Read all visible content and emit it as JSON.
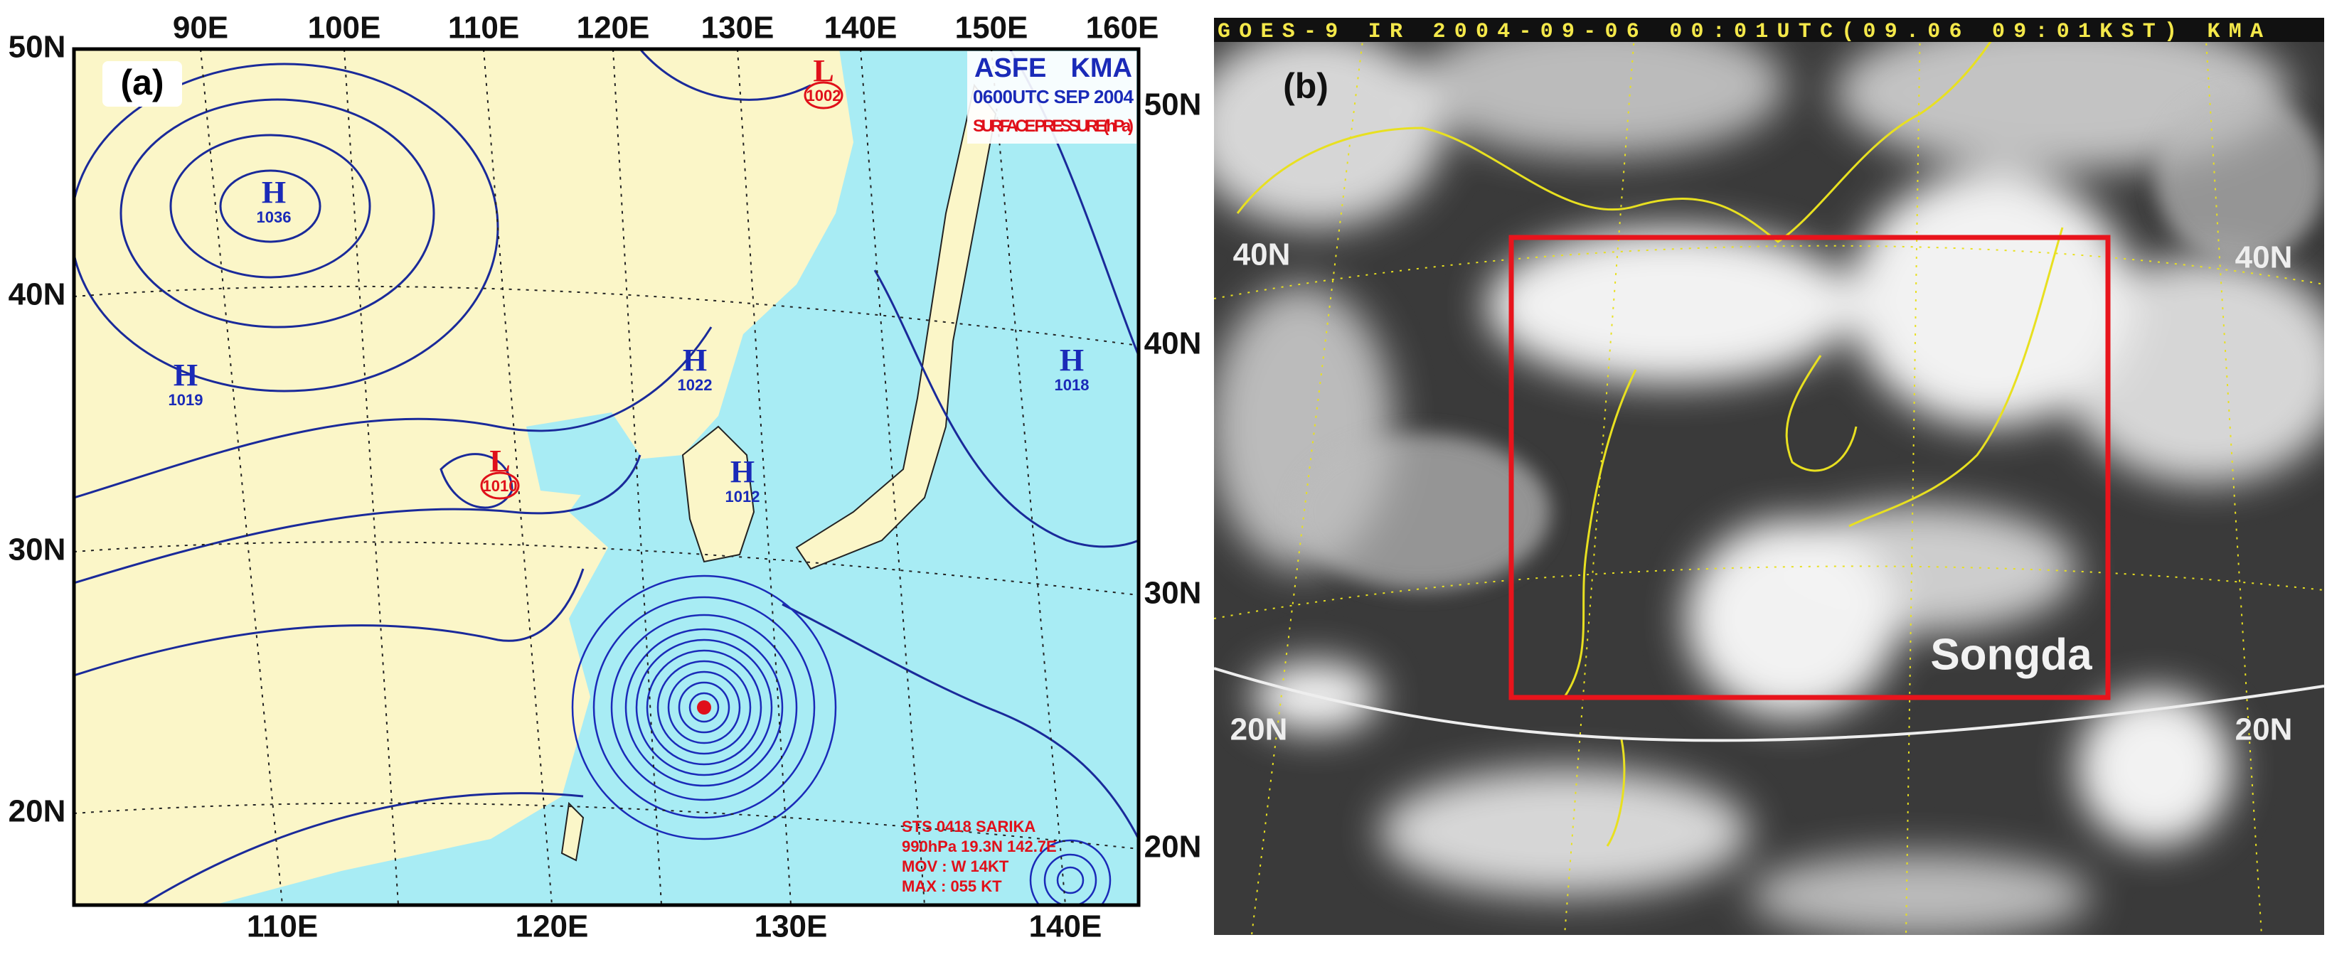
{
  "panel_a": {
    "label": "(a)",
    "header": {
      "agency_left": "ASFE",
      "agency_right": "KMA",
      "time": "0600UTC SEP 2004",
      "field": "SURFACE PRESSURE(hPa)"
    },
    "top_longitudes": [
      "90E",
      "100E",
      "110E",
      "120E",
      "130E",
      "140E",
      "150E",
      "160E"
    ],
    "bottom_longitudes": [
      "110E",
      "120E",
      "130E",
      "140E"
    ],
    "left_latitudes": [
      "50N",
      "40N",
      "30N",
      "20N"
    ],
    "right_latitudes": [
      "50N",
      "40N",
      "30N",
      "20N"
    ],
    "pressure_centers": [
      {
        "type": "H",
        "value": "1036"
      },
      {
        "type": "H",
        "value": "1019"
      },
      {
        "type": "L",
        "value": "1010"
      },
      {
        "type": "H",
        "value": "1022"
      },
      {
        "type": "H",
        "value": "1012"
      },
      {
        "type": "H",
        "value": "1018"
      },
      {
        "type": "L",
        "value": "1002"
      }
    ],
    "typhoon_info": [
      "STS 0418 SARIKA",
      "990hPa 19.3N 142.7E",
      "MOV : W 14KT",
      "MAX : 055 KT"
    ]
  },
  "panel_b": {
    "title": "GOES-9 IR 2004-09-06 00:01UTC(09.06 09:01KST) KMA",
    "label": "(b)",
    "left_latitudes": [
      "40N",
      "20N"
    ],
    "right_latitudes": [
      "40N",
      "20N"
    ],
    "storm_name": "Songda"
  }
}
